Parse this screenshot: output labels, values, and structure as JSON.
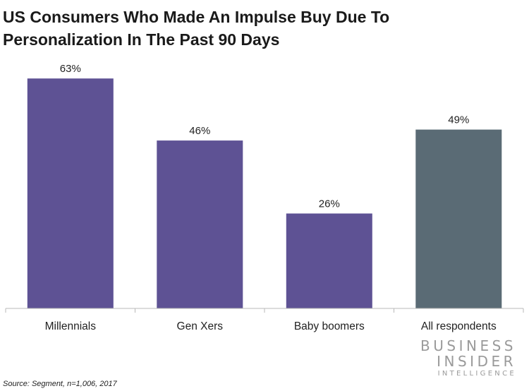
{
  "title": {
    "line1": "US Consumers Who Made An Impulse Buy Due To",
    "line2": "Personalization In The Past 90 Days"
  },
  "chart_data": {
    "type": "bar",
    "categories": [
      "Millennials",
      "Gen Xers",
      "Baby boomers",
      "All respondents"
    ],
    "values": [
      63,
      46,
      26,
      49
    ],
    "value_labels": [
      "63%",
      "46%",
      "26%",
      "49%"
    ],
    "colors": [
      "#5e5294",
      "#5e5294",
      "#5e5294",
      "#5a6b75"
    ],
    "ylim": [
      0,
      70
    ],
    "grid": false,
    "legend": "none"
  },
  "logo": {
    "line1": "BUSINESS",
    "line2": "INSIDER",
    "line3": "INTELLIGENCE"
  },
  "source": "Source: Segment, n=1,006, 2017"
}
